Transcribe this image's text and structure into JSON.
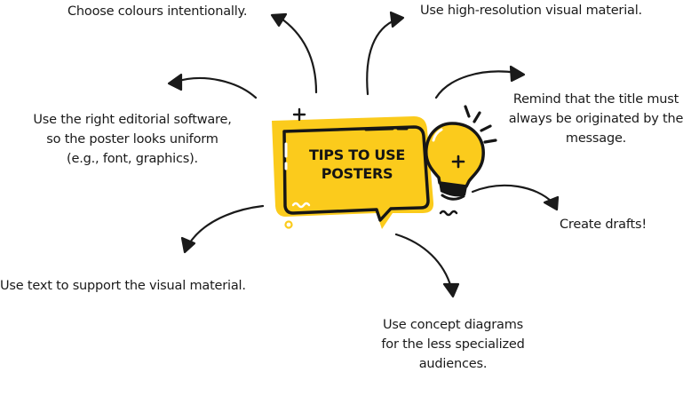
{
  "title": {
    "lines": [
      "TIPS TO USE",
      "POSTERS"
    ]
  },
  "tips": [
    {
      "id": "colours",
      "lines": [
        "Choose colours intentionally."
      ]
    },
    {
      "id": "resolution",
      "lines": [
        "Use high-resolution visual material."
      ]
    },
    {
      "id": "software",
      "lines": [
        "Use the right editorial software,",
        "so the poster looks uniform",
        "(e.g., font, graphics)."
      ]
    },
    {
      "id": "title",
      "lines": [
        "Remind that the title must",
        "always be originated by the",
        "message."
      ]
    },
    {
      "id": "drafts",
      "lines": [
        "Create drafts!"
      ]
    },
    {
      "id": "text",
      "lines": [
        "Use text to support the visual material."
      ]
    },
    {
      "id": "diagrams",
      "lines": [
        "Use concept diagrams",
        "for the less specialized",
        "audiences."
      ]
    }
  ],
  "colors": {
    "accent": "#fbcb1c",
    "ink": "#1a1a1a",
    "background": "#ffffff"
  },
  "icons": [
    "lightbulb-icon",
    "sparkle-icon",
    "squiggle-icon",
    "arrow-icon"
  ]
}
